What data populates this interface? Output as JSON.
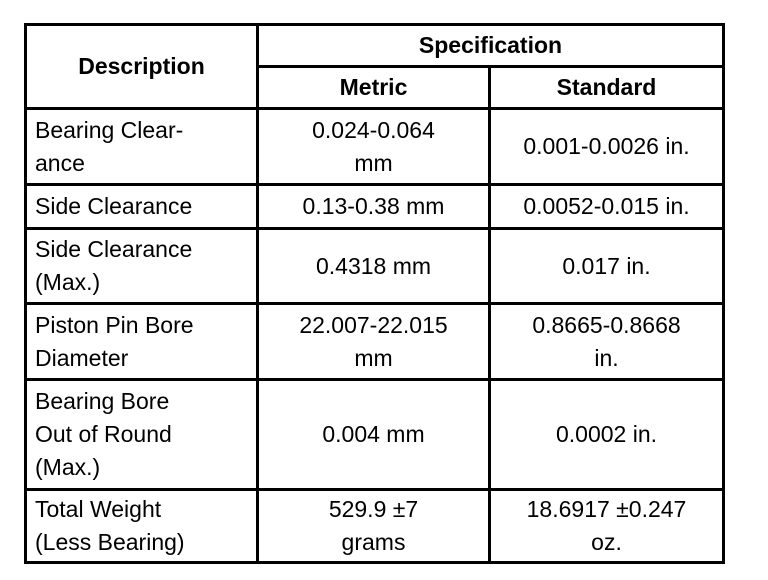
{
  "table": {
    "header": {
      "description": "Description",
      "specification": "Specification",
      "metric": "Metric",
      "standard": "Standard"
    },
    "rows": [
      [
        [
          "Bearing Clear-",
          "ance"
        ],
        [
          "0.024-0.064",
          "mm"
        ],
        [
          "0.001-0.0026 in."
        ]
      ],
      [
        [
          "Side Clearance"
        ],
        [
          "0.13-0.38 mm"
        ],
        [
          "0.0052-0.015 in."
        ]
      ],
      [
        [
          "Side Clearance",
          "(Max.)"
        ],
        [
          "0.4318 mm"
        ],
        [
          "0.017 in."
        ]
      ],
      [
        [
          "Piston Pin Bore",
          "Diameter"
        ],
        [
          "22.007-22.015",
          "mm"
        ],
        [
          "0.8665-0.8668",
          "in."
        ]
      ],
      [
        [
          "Bearing Bore",
          "Out of Round",
          "(Max.)"
        ],
        [
          "0.004 mm"
        ],
        [
          "0.0002 in."
        ]
      ],
      [
        [
          "Total Weight",
          "(Less Bearing)"
        ],
        [
          "529.9 ±7",
          "grams"
        ],
        [
          "18.6917 ±0.247",
          "oz."
        ]
      ]
    ]
  }
}
